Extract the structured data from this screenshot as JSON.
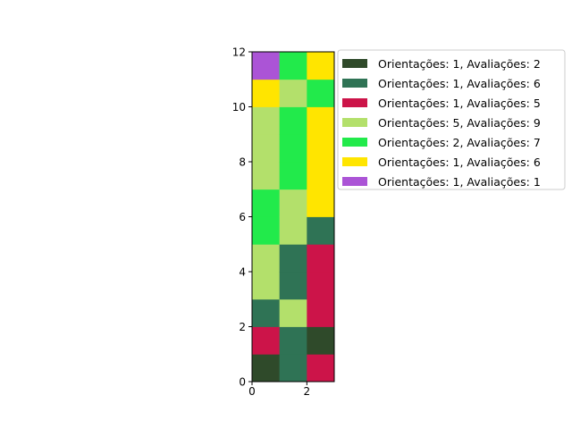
{
  "chart_data": {
    "type": "heatmap",
    "title": "",
    "xlabel": "",
    "ylabel": "",
    "xlim": [
      0,
      3
    ],
    "ylim": [
      0,
      12
    ],
    "x_ticks": [
      0,
      2
    ],
    "y_ticks": [
      0,
      2,
      4,
      6,
      8,
      10,
      12
    ],
    "grid": false,
    "legend_position": "outside-right",
    "legend": [
      {
        "label": "Orientações: 1, Avaliações: 2",
        "color": "#2f4a2a"
      },
      {
        "label": "Orientações: 1, Avaliações: 6",
        "color": "#2f7355"
      },
      {
        "label": "Orientações: 1, Avaliações: 5",
        "color": "#cc1449"
      },
      {
        "label": "Orientações: 5, Avaliações: 9",
        "color": "#b3e06b"
      },
      {
        "label": "Orientações: 2, Avaliações: 7",
        "color": "#22ea4b"
      },
      {
        "label": "Orientações: 1, Avaliações: 6",
        "color": "#ffe500"
      },
      {
        "label": "Orientações: 1, Avaliações: 1",
        "color": "#ab54d6"
      }
    ],
    "columns": [
      {
        "x": 0,
        "cells": [
          0,
          2,
          1,
          3,
          3,
          4,
          4,
          3,
          3,
          3,
          5,
          6
        ]
      },
      {
        "x": 1,
        "cells": [
          1,
          1,
          3,
          1,
          1,
          3,
          3,
          4,
          4,
          4,
          3,
          4
        ]
      },
      {
        "x": 2,
        "cells": [
          2,
          0,
          2,
          2,
          2,
          1,
          5,
          5,
          5,
          5,
          4,
          5
        ]
      }
    ]
  }
}
